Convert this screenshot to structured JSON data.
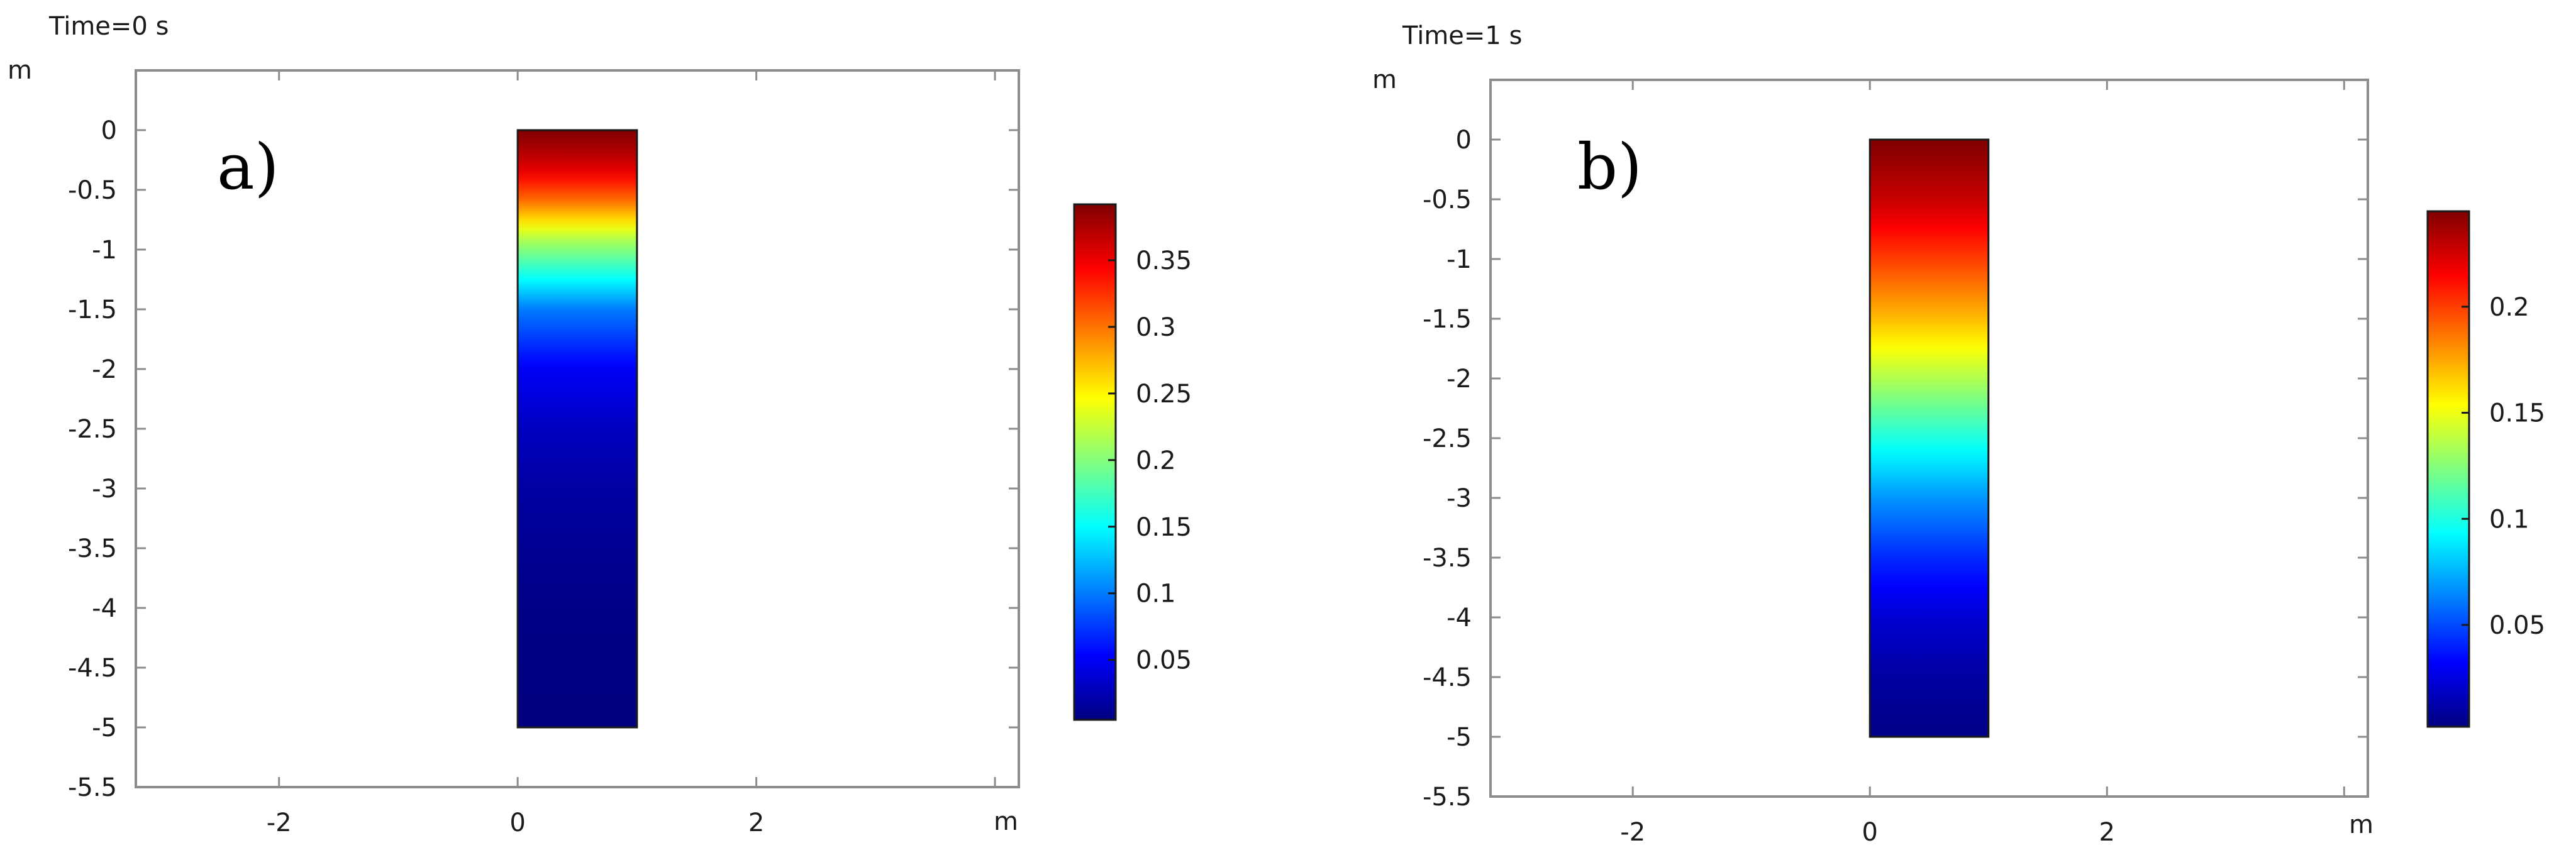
{
  "chart_data": [
    {
      "type": "heatmap",
      "title": "Time=0 s",
      "panel_label": "a)",
      "x_unit": "m",
      "y_unit": "m",
      "xlim": [
        -3.2,
        4.2
      ],
      "ylim": [
        -5.5,
        0.5
      ],
      "x_ticks": [
        -2,
        0,
        2
      ],
      "y_ticks": [
        0,
        -0.5,
        -1,
        -1.5,
        -2,
        -2.5,
        -3,
        -3.5,
        -4,
        -4.5,
        -5,
        -5.5
      ],
      "domain": {
        "x": [
          0,
          1
        ],
        "y": [
          -5,
          0
        ]
      },
      "colorscale": "jet",
      "color_range": [
        0.005,
        0.392
      ],
      "colorbar_ticks": [
        0.35,
        0.3,
        0.25,
        0.2,
        0.15,
        0.1,
        0.05
      ],
      "profile_depth": [
        0,
        -0.3,
        -0.6,
        -0.9,
        -1.2,
        -1.5,
        -2.0,
        -2.5,
        -3.0,
        -4.0,
        -5.0
      ],
      "profile_value": [
        0.392,
        0.36,
        0.3,
        0.22,
        0.16,
        0.1,
        0.05,
        0.03,
        0.018,
        0.008,
        0.005
      ],
      "colors": {
        "frame": "#8c8c8c",
        "domain_edge": "#1a1a1a"
      }
    },
    {
      "type": "heatmap",
      "title": "Time=1 s",
      "panel_label": "b)",
      "x_unit": "m",
      "y_unit": "m",
      "xlim": [
        -3.2,
        4.2
      ],
      "ylim": [
        -5.5,
        0.5
      ],
      "x_ticks": [
        -2,
        0,
        2
      ],
      "y_ticks": [
        0,
        -0.5,
        -1,
        -1.5,
        -2,
        -2.5,
        -3,
        -3.5,
        -4,
        -4.5,
        -5,
        -5.5
      ],
      "domain": {
        "x": [
          0,
          1
        ],
        "y": [
          -5,
          0
        ]
      },
      "colorscale": "jet",
      "color_range": [
        0.002,
        0.245
      ],
      "colorbar_ticks": [
        0.2,
        0.15,
        0.1,
        0.05
      ],
      "profile_depth": [
        0,
        -0.5,
        -1.0,
        -1.5,
        -2.0,
        -2.5,
        -3.0,
        -3.5,
        -4.0,
        -4.5,
        -5.0
      ],
      "profile_value": [
        0.245,
        0.228,
        0.2,
        0.17,
        0.135,
        0.1,
        0.068,
        0.042,
        0.022,
        0.01,
        0.004
      ],
      "colors": {
        "frame": "#8c8c8c",
        "domain_edge": "#1a1a1a"
      }
    }
  ]
}
